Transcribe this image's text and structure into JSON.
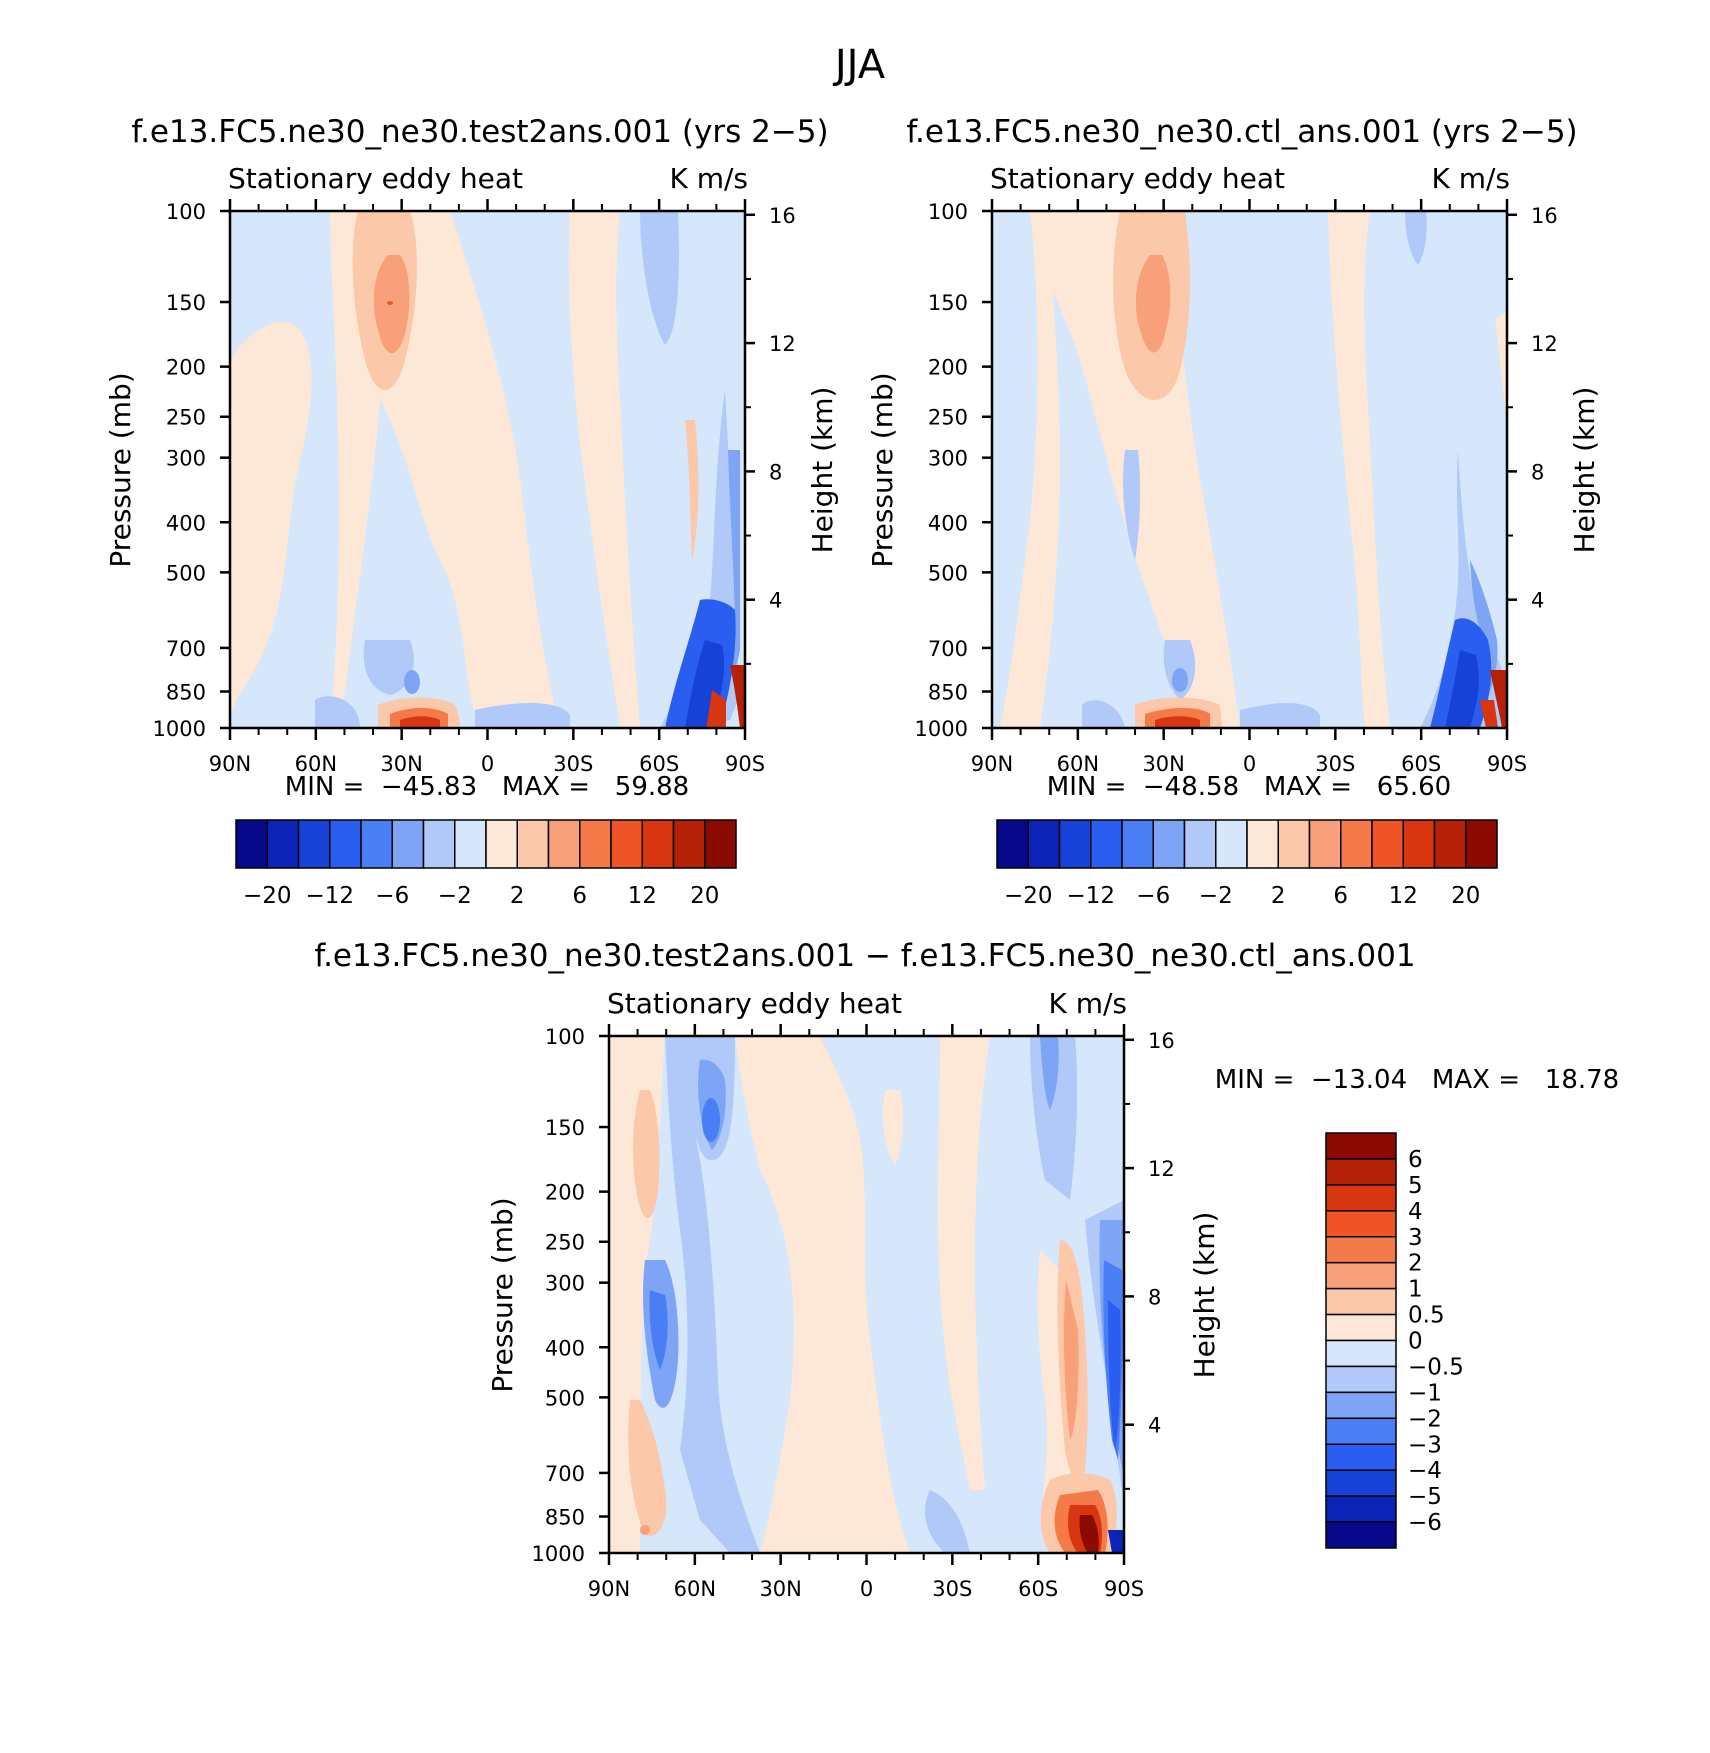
{
  "figure_title": "JJA",
  "colors": {
    "ramp_16": [
      "#08088c",
      "#0b23b6",
      "#1642d8",
      "#2a5ef0",
      "#4a7ef5",
      "#7ea4f5",
      "#b0c9f8",
      "#d6e6fb",
      "#fde8d8",
      "#fcc8aa",
      "#f8a07a",
      "#f47a4a",
      "#ef5426",
      "#d83610",
      "#b52106",
      "#8b0b02"
    ],
    "diff_ramp": [
      "#08088c",
      "#0b23b6",
      "#1642d8",
      "#2a5ef0",
      "#4a7ef5",
      "#7ea4f5",
      "#b0c9f8",
      "#d6e6fb",
      "#fde8d8",
      "#fcc8aa",
      "#f8a07a",
      "#f47a4a",
      "#ef5426",
      "#d83610",
      "#b52106",
      "#8b0b02"
    ]
  },
  "chart_data": [
    {
      "type": "heatmap",
      "title": "f.e13.FC5.ne30_ne30.test2ans.001 (yrs 2−5)",
      "left_string": "Stationary eddy heat",
      "right_string": "K m/s",
      "xlabel": "",
      "ylabel": "Pressure (mb)",
      "ylabel_right": "Height (km)",
      "x_ticks": [
        "90N",
        "60N",
        "30N",
        "0",
        "30S",
        "60S",
        "90S"
      ],
      "y_ticks": [
        "100",
        "150",
        "200",
        "250",
        "300",
        "400",
        "500",
        "700",
        "850",
        "1000"
      ],
      "y_right_ticks": [
        "16",
        "12",
        "8",
        "4"
      ],
      "ylim": [
        1000,
        100
      ],
      "stats": "MIN =  −45.83   MAX =   59.88",
      "colorbar_labels": [
        "−20",
        "−12",
        "−6",
        "−2",
        "2",
        "6",
        "12",
        "20"
      ],
      "colorbar_levels": [
        -20,
        -16,
        -12,
        -8,
        -6,
        -4,
        -2,
        0,
        2,
        4,
        6,
        8,
        12,
        16,
        20
      ],
      "features": [
        {
          "lat": 30,
          "p": 150,
          "value": 6
        },
        {
          "lat": 30,
          "p": 980,
          "value": 20
        },
        {
          "lat": -80,
          "p": 800,
          "value": -20
        },
        {
          "lat": -88,
          "p": 900,
          "value": 20
        },
        {
          "lat": -55,
          "p": 150,
          "value": -4
        },
        {
          "lat": -85,
          "p": 450,
          "value": -12
        }
      ]
    },
    {
      "type": "heatmap",
      "title": "f.e13.FC5.ne30_ne30.ctl_ans.001 (yrs 2−5)",
      "left_string": "Stationary eddy heat",
      "right_string": "K m/s",
      "xlabel": "",
      "ylabel": "Pressure (mb)",
      "ylabel_right": "Height (km)",
      "x_ticks": [
        "90N",
        "60N",
        "30N",
        "0",
        "30S",
        "60S",
        "90S"
      ],
      "y_ticks": [
        "100",
        "150",
        "200",
        "250",
        "300",
        "400",
        "500",
        "700",
        "850",
        "1000"
      ],
      "y_right_ticks": [
        "16",
        "12",
        "8",
        "4"
      ],
      "ylim": [
        1000,
        100
      ],
      "stats": "MIN =  −48.58   MAX =   65.60",
      "colorbar_labels": [
        "−20",
        "−12",
        "−6",
        "−2",
        "2",
        "6",
        "12",
        "20"
      ],
      "colorbar_levels": [
        -20,
        -16,
        -12,
        -8,
        -6,
        -4,
        -2,
        0,
        2,
        4,
        6,
        8,
        12,
        16,
        20
      ],
      "features": [
        {
          "lat": 35,
          "p": 150,
          "value": 6
        },
        {
          "lat": 30,
          "p": 980,
          "value": 20
        },
        {
          "lat": -82,
          "p": 800,
          "value": -20
        },
        {
          "lat": -88,
          "p": 900,
          "value": 20
        }
      ]
    },
    {
      "type": "heatmap",
      "title": "f.e13.FC5.ne30_ne30.test2ans.001 − f.e13.FC5.ne30_ne30.ctl_ans.001",
      "left_string": "Stationary eddy heat",
      "right_string": "K m/s",
      "xlabel": "",
      "ylabel": "Pressure (mb)",
      "ylabel_right": "Height (km)",
      "x_ticks": [
        "90N",
        "60N",
        "30N",
        "0",
        "30S",
        "60S",
        "90S"
      ],
      "y_ticks": [
        "100",
        "150",
        "200",
        "250",
        "300",
        "400",
        "500",
        "700",
        "850",
        "1000"
      ],
      "y_right_ticks": [
        "16",
        "12",
        "8",
        "4"
      ],
      "ylim": [
        1000,
        100
      ],
      "stats": "MIN =  −13.04   MAX =   18.78",
      "colorbar_labels": [
        "6",
        "5",
        "4",
        "3",
        "2",
        "1",
        "0.5",
        "0",
        "−0.5",
        "−1",
        "−2",
        "−3",
        "−4",
        "−5",
        "−6"
      ],
      "colorbar_levels": [
        6,
        5,
        4,
        3,
        2,
        1,
        0.5,
        0,
        -0.5,
        -1,
        -2,
        -3,
        -4,
        -5,
        -6
      ],
      "features": [
        {
          "lat": 53,
          "p": 150,
          "value": -3
        },
        {
          "lat": 70,
          "p": 350,
          "value": -3
        },
        {
          "lat": -72,
          "p": 500,
          "value": 3
        },
        {
          "lat": -85,
          "p": 400,
          "value": -4
        },
        {
          "lat": -78,
          "p": 920,
          "value": 6
        }
      ]
    }
  ]
}
